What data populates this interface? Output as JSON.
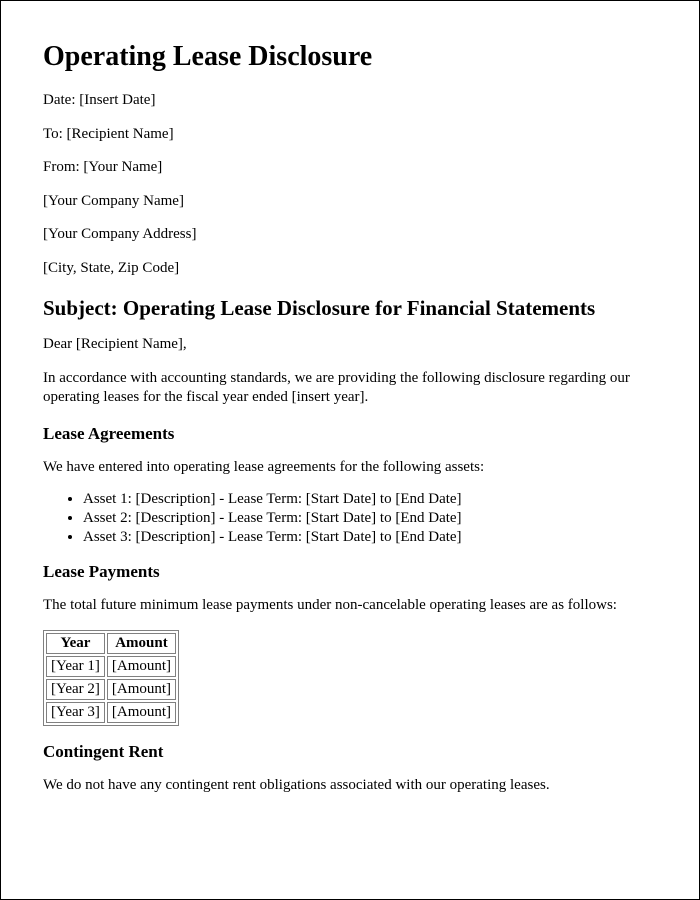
{
  "title": "Operating Lease Disclosure",
  "header": {
    "date": "Date: [Insert Date]",
    "to": "To: [Recipient Name]",
    "from": "From: [Your Name]",
    "company": "[Your Company Name]",
    "address": "[Your Company Address]",
    "cityStateZip": "[City, State, Zip Code]"
  },
  "subject": "Subject: Operating Lease Disclosure for Financial Statements",
  "salutation": "Dear [Recipient Name],",
  "intro": "In accordance with accounting standards, we are providing the following disclosure regarding our operating leases for the fiscal year ended [insert year].",
  "leaseAgreements": {
    "heading": "Lease Agreements",
    "intro": "We have entered into operating lease agreements for the following assets:",
    "items": [
      "Asset 1: [Description] - Lease Term: [Start Date] to [End Date]",
      "Asset 2: [Description] - Lease Term: [Start Date] to [End Date]",
      "Asset 3: [Description] - Lease Term: [Start Date] to [End Date]"
    ]
  },
  "leasePayments": {
    "heading": "Lease Payments",
    "intro": "The total future minimum lease payments under non-cancelable operating leases are as follows:",
    "columns": [
      "Year",
      "Amount"
    ],
    "rows": [
      [
        "[Year 1]",
        "[Amount]"
      ],
      [
        "[Year 2]",
        "[Amount]"
      ],
      [
        "[Year 3]",
        "[Amount]"
      ]
    ]
  },
  "contingentRent": {
    "heading": "Contingent Rent",
    "text": "We do not have any contingent rent obligations associated with our operating leases."
  }
}
